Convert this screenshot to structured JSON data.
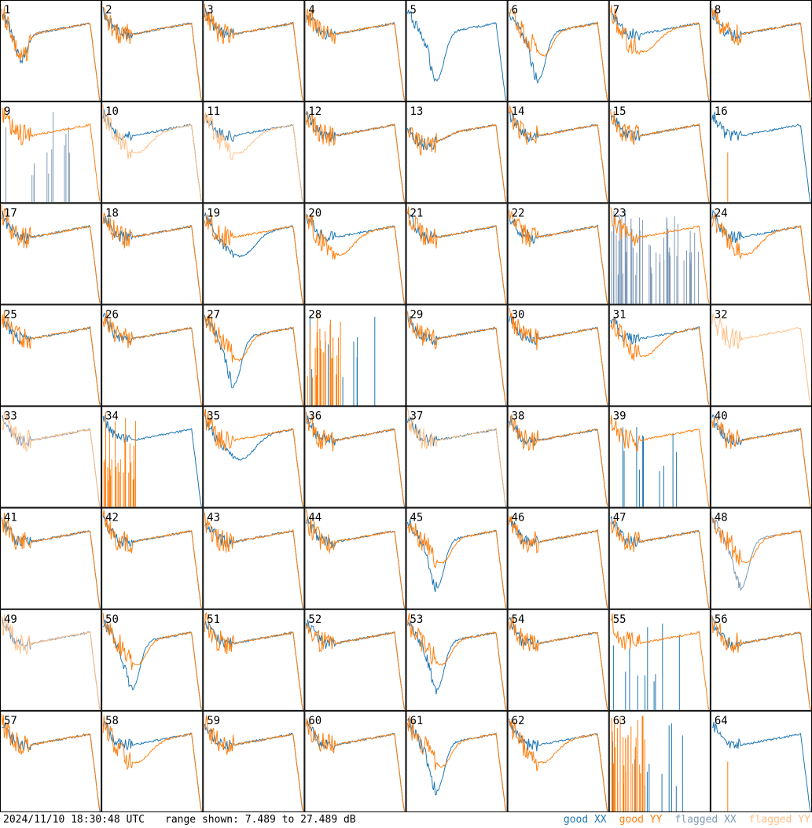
{
  "footer": {
    "timestamp": "2024/11/10 18:30:48 UTC",
    "range_text": "range shown: 7.489 to 27.489 dB"
  },
  "legend": [
    {
      "key": "good_xx",
      "word": "good",
      "pol": "XX",
      "color": "#1f77b4"
    },
    {
      "key": "good_yy",
      "word": "good",
      "pol": "YY",
      "color": "#ff7f0e"
    },
    {
      "key": "flagged_xx",
      "word": "flagged",
      "pol": "XX",
      "color": "#7f9ab8"
    },
    {
      "key": "flagged_yy",
      "word": "flagged",
      "pol": "YY",
      "color": "#ffbf86"
    }
  ],
  "chart_data": {
    "type": "line",
    "layout": {
      "rows": 8,
      "cols": 8
    },
    "y_range_db": [
      7.489,
      27.489
    ],
    "grid": false,
    "legend_position": "bottom-right",
    "panels": [
      {
        "id": "1",
        "xx": "good",
        "yy": "good",
        "style": "early_dip"
      },
      {
        "id": "2",
        "xx": "good",
        "yy": "good",
        "style": "flat"
      },
      {
        "id": "3",
        "xx": "good",
        "yy": "good",
        "style": "flat"
      },
      {
        "id": "4",
        "xx": "good",
        "yy": "good",
        "style": "flat"
      },
      {
        "id": "5",
        "xx": "good",
        "yy": "none",
        "style": "deep_dip"
      },
      {
        "id": "6",
        "xx": "good",
        "yy": "good",
        "style": "deep_dip"
      },
      {
        "id": "7",
        "xx": "good",
        "yy": "good",
        "style": "yy_low"
      },
      {
        "id": "8",
        "xx": "good",
        "yy": "good",
        "style": "flat"
      },
      {
        "id": "9",
        "xx": "flagged_spikes",
        "yy": "good",
        "style": "flat"
      },
      {
        "id": "10",
        "xx": "good",
        "yy": "flagged",
        "style": "yy_low"
      },
      {
        "id": "11",
        "xx": "good",
        "yy": "flagged",
        "style": "yy_low"
      },
      {
        "id": "12",
        "xx": "good",
        "yy": "good",
        "style": "flat"
      },
      {
        "id": "13",
        "xx": "good",
        "yy": "good",
        "style": "rising"
      },
      {
        "id": "14",
        "xx": "good",
        "yy": "good",
        "style": "flat"
      },
      {
        "id": "15",
        "xx": "good",
        "yy": "good",
        "style": "flat"
      },
      {
        "id": "16",
        "xx": "good",
        "yy": "single_spike",
        "style": "flat"
      },
      {
        "id": "17",
        "xx": "good",
        "yy": "good",
        "style": "flat"
      },
      {
        "id": "18",
        "xx": "good",
        "yy": "good",
        "style": "flat"
      },
      {
        "id": "19",
        "xx": "good",
        "yy": "good",
        "style": "xx_low"
      },
      {
        "id": "20",
        "xx": "good",
        "yy": "good",
        "style": "yy_low"
      },
      {
        "id": "21",
        "xx": "good",
        "yy": "good",
        "style": "flat"
      },
      {
        "id": "22",
        "xx": "good",
        "yy": "good",
        "style": "flat"
      },
      {
        "id": "23",
        "xx": "flagged_noise",
        "yy": "good",
        "style": "flat"
      },
      {
        "id": "24",
        "xx": "good",
        "yy": "good",
        "style": "yy_low"
      },
      {
        "id": "25",
        "xx": "good",
        "yy": "good",
        "style": "flat"
      },
      {
        "id": "26",
        "xx": "good",
        "yy": "good",
        "style": "flat"
      },
      {
        "id": "27",
        "xx": "good",
        "yy": "good",
        "style": "deep_dip"
      },
      {
        "id": "28",
        "xx": "spikes",
        "yy": "spikes",
        "style": "flat"
      },
      {
        "id": "29",
        "xx": "good",
        "yy": "good",
        "style": "flat"
      },
      {
        "id": "30",
        "xx": "good",
        "yy": "good",
        "style": "flat"
      },
      {
        "id": "31",
        "xx": "good",
        "yy": "good",
        "style": "yy_low"
      },
      {
        "id": "32",
        "xx": "none",
        "yy": "flagged",
        "style": "flat"
      },
      {
        "id": "33",
        "xx": "flagged",
        "yy": "flagged",
        "style": "flat"
      },
      {
        "id": "34",
        "xx": "good",
        "yy": "spikes",
        "style": "flat"
      },
      {
        "id": "35",
        "xx": "good",
        "yy": "good",
        "style": "xx_low"
      },
      {
        "id": "36",
        "xx": "good",
        "yy": "good",
        "style": "flat"
      },
      {
        "id": "37",
        "xx": "good",
        "yy": "flagged",
        "style": "flat"
      },
      {
        "id": "38",
        "xx": "good",
        "yy": "good",
        "style": "flat"
      },
      {
        "id": "39",
        "xx": "spikes",
        "yy": "good",
        "style": "flat"
      },
      {
        "id": "40",
        "xx": "good",
        "yy": "good",
        "style": "flat"
      },
      {
        "id": "41",
        "xx": "good",
        "yy": "good",
        "style": "flat"
      },
      {
        "id": "42",
        "xx": "good",
        "yy": "good",
        "style": "flat"
      },
      {
        "id": "43",
        "xx": "good",
        "yy": "good",
        "style": "flat"
      },
      {
        "id": "44",
        "xx": "good",
        "yy": "good",
        "style": "flat"
      },
      {
        "id": "45",
        "xx": "good",
        "yy": "good",
        "style": "deep_dip"
      },
      {
        "id": "46",
        "xx": "good",
        "yy": "good",
        "style": "flat"
      },
      {
        "id": "47",
        "xx": "good",
        "yy": "good",
        "style": "flat"
      },
      {
        "id": "48",
        "xx": "flagged",
        "yy": "good",
        "style": "deep_dip"
      },
      {
        "id": "49",
        "xx": "flagged",
        "yy": "flagged",
        "style": "flat"
      },
      {
        "id": "50",
        "xx": "good",
        "yy": "good",
        "style": "deep_dip"
      },
      {
        "id": "51",
        "xx": "good",
        "yy": "good",
        "style": "flat"
      },
      {
        "id": "52",
        "xx": "good",
        "yy": "good",
        "style": "flat"
      },
      {
        "id": "53",
        "xx": "good",
        "yy": "good",
        "style": "deep_dip"
      },
      {
        "id": "54",
        "xx": "good",
        "yy": "good",
        "style": "flat"
      },
      {
        "id": "55",
        "xx": "spikes",
        "yy": "good",
        "style": "flat"
      },
      {
        "id": "56",
        "xx": "good",
        "yy": "good",
        "style": "flat"
      },
      {
        "id": "57",
        "xx": "good",
        "yy": "good",
        "style": "flat"
      },
      {
        "id": "58",
        "xx": "good",
        "yy": "good",
        "style": "yy_low"
      },
      {
        "id": "59",
        "xx": "good",
        "yy": "good",
        "style": "flat"
      },
      {
        "id": "60",
        "xx": "good",
        "yy": "good",
        "style": "flat"
      },
      {
        "id": "61",
        "xx": "good",
        "yy": "good",
        "style": "deep_dip"
      },
      {
        "id": "62",
        "xx": "good",
        "yy": "good",
        "style": "yy_low"
      },
      {
        "id": "63",
        "xx": "spikes",
        "yy": "spikes",
        "style": "flat"
      },
      {
        "id": "64",
        "xx": "good",
        "yy": "single_spike",
        "style": "flat"
      }
    ]
  }
}
